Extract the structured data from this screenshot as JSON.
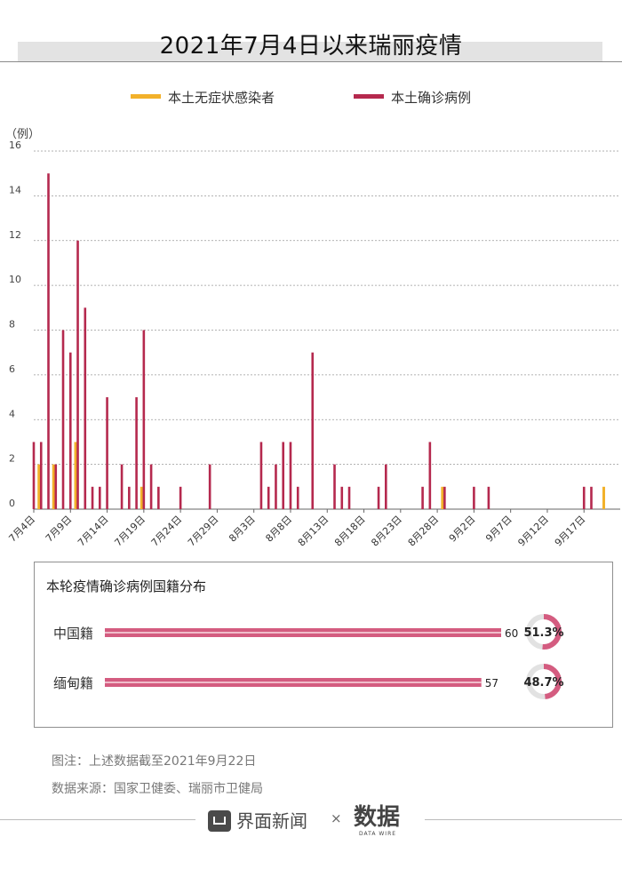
{
  "title": "2021年7月4日以来瑞丽疫情",
  "colors": {
    "asymptomatic": "#f2b12a",
    "confirmed": "#b5294e",
    "nat_bar": "#d45c80",
    "ring_bg": "#e2e2e2"
  },
  "chart_data": {
    "type": "bar",
    "ylabel": "（例）",
    "ylim": [
      0,
      16
    ],
    "yticks": [
      "0",
      "2",
      "4",
      "6",
      "8",
      "10",
      "12",
      "14",
      "16"
    ],
    "xtick_labels": [
      "7月4日",
      "7月9日",
      "7月14日",
      "7月19日",
      "7月24日",
      "7月29日",
      "8月3日",
      "8月8日",
      "8月13日",
      "8月18日",
      "8月23日",
      "8月28日",
      "9月2日",
      "9月7日",
      "9月12日",
      "9月17日"
    ],
    "series": [
      {
        "name": "本土无症状感染者",
        "color": "#f2b12a",
        "values": [
          0,
          2,
          0,
          2,
          0,
          0,
          3,
          0,
          0,
          0,
          0,
          0,
          0,
          0,
          0,
          1,
          0,
          0,
          0,
          0,
          0,
          0,
          0,
          0,
          0,
          0,
          0,
          0,
          0,
          0,
          0,
          0,
          0,
          0,
          0,
          0,
          0,
          0,
          0,
          0,
          0,
          0,
          0,
          0,
          0,
          0,
          0,
          0,
          0,
          0,
          0,
          0,
          0,
          0,
          0,
          0,
          1,
          0,
          0,
          0,
          0,
          0,
          0,
          0,
          0,
          0,
          0,
          0,
          0,
          0,
          0,
          0,
          0,
          0,
          0,
          0,
          0,
          0,
          1
        ]
      },
      {
        "name": "本土确诊病例",
        "color": "#b5294e",
        "values": [
          3,
          3,
          15,
          2,
          8,
          7,
          12,
          9,
          1,
          1,
          5,
          0,
          2,
          1,
          5,
          8,
          2,
          1,
          0,
          0,
          1,
          0,
          0,
          0,
          2,
          0,
          0,
          0,
          0,
          0,
          0,
          3,
          1,
          2,
          3,
          3,
          1,
          0,
          7,
          0,
          0,
          2,
          1,
          1,
          0,
          0,
          0,
          1,
          2,
          0,
          0,
          0,
          0,
          1,
          3,
          0,
          1,
          0,
          0,
          0,
          1,
          0,
          1,
          0,
          0,
          0,
          0,
          0,
          0,
          0,
          0,
          0,
          0,
          0,
          0,
          1,
          1,
          0,
          0
        ]
      }
    ],
    "nationality": {
      "title": "本轮疫情确诊病例国籍分布",
      "items": [
        {
          "label": "中国籍",
          "value": 60,
          "pct": "51.3%"
        },
        {
          "label": "缅甸籍",
          "value": 57,
          "pct": "48.7%"
        }
      ]
    }
  },
  "notes": {
    "note1": "图注：上述数据截至2021年9月22日",
    "note2": "数据来源：国家卫健委、瑞丽市卫健局"
  },
  "footer": {
    "brand": "界面新闻",
    "times": "×",
    "logo_text": "数据",
    "logo_sub": "DATA WIRE"
  }
}
